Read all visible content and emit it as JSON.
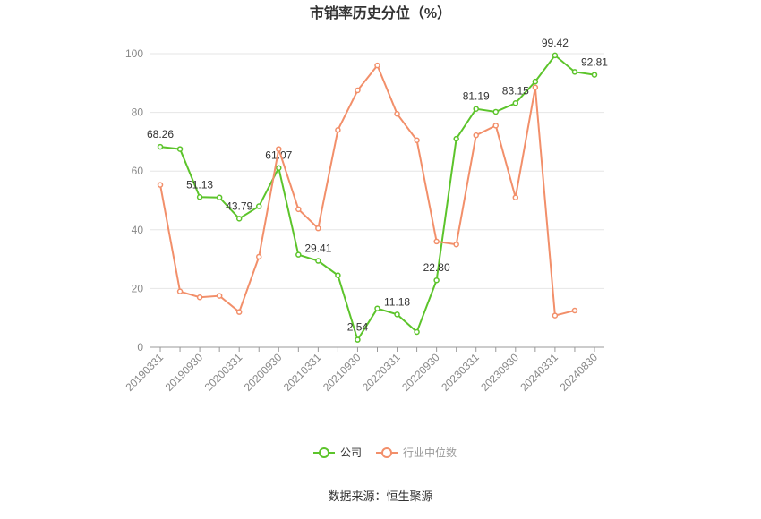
{
  "chart_data": {
    "type": "line",
    "title": "市销率历史分位（%）",
    "source": "数据来源：恒生聚源",
    "categories": [
      "20190331",
      null,
      "20190930",
      null,
      "20200331",
      null,
      "20200930",
      null,
      "20210331",
      null,
      "20210930",
      null,
      "20220331",
      null,
      "20220930",
      null,
      "20230331",
      null,
      "20230930",
      null,
      "20240331",
      null,
      "20240830"
    ],
    "series": [
      {
        "name": "公司",
        "color": "#5cc42b",
        "values": [
          68.26,
          67.5,
          51.13,
          51.0,
          43.79,
          48.0,
          61.07,
          31.5,
          29.41,
          24.5,
          2.54,
          13.2,
          11.18,
          5.2,
          22.8,
          71.0,
          81.19,
          80.2,
          83.15,
          90.5,
          99.42,
          93.8,
          92.81
        ],
        "value_labels": [
          "68.26",
          null,
          "51.13",
          null,
          "43.79",
          null,
          "61.07",
          null,
          "29.41",
          null,
          "2.54",
          null,
          "11.18",
          null,
          "22.80",
          null,
          "81.19",
          null,
          "83.15",
          null,
          "99.42",
          null,
          "92.81"
        ]
      },
      {
        "name": "行业中位数",
        "color": "#f28f6a",
        "values": [
          55.3,
          19.0,
          17.0,
          17.5,
          12.0,
          30.8,
          67.5,
          47.0,
          40.5,
          74.0,
          87.5,
          96.0,
          79.5,
          70.5,
          36.0,
          35.0,
          72.2,
          75.5,
          51.0,
          88.5,
          10.8,
          12.5,
          null
        ]
      }
    ],
    "ylim": [
      0,
      100
    ],
    "yticks": [
      0,
      20,
      40,
      60,
      80,
      100
    ],
    "grid": true
  }
}
